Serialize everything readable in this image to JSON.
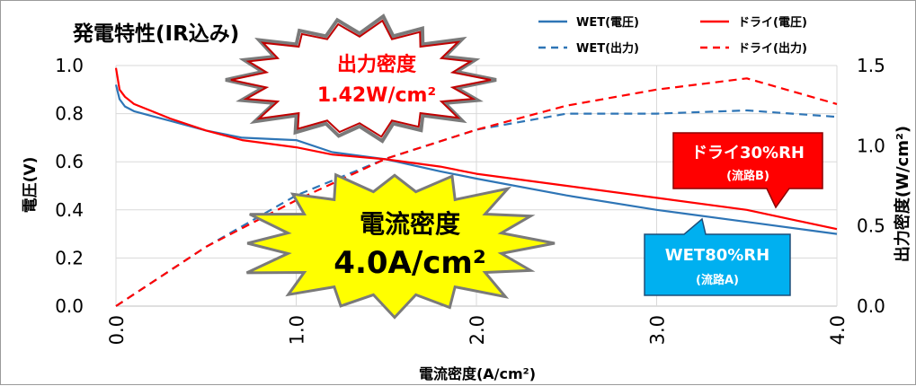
{
  "chart_data": {
    "type": "line",
    "title": "発電特性(IR込み)",
    "xlabel": "電流密度(A/cm²)",
    "ylabel": "電圧(V)",
    "y2label": "出力密度(W/cm²)",
    "xlim": [
      0,
      4
    ],
    "ylim": [
      0,
      1
    ],
    "y2lim": [
      0,
      1.5
    ],
    "xticks": [
      "0.0",
      "1.0",
      "2.0",
      "3.0",
      "4.0"
    ],
    "yticks": [
      "0.0",
      "0.2",
      "0.4",
      "0.6",
      "0.8",
      "1.0"
    ],
    "y2ticks": [
      "0.0",
      "0.5",
      "1.0",
      "1.5"
    ],
    "grid": true,
    "legend_position": "top-right",
    "series": [
      {
        "name": "WET(電圧)",
        "axis": "left",
        "style": "solid",
        "color": "#2e75b6",
        "x": [
          0,
          0.02,
          0.05,
          0.1,
          0.2,
          0.3,
          0.5,
          0.7,
          1.0,
          1.2,
          1.5,
          1.8,
          2.0,
          2.5,
          3.0,
          3.5,
          4.0
        ],
        "y": [
          0.92,
          0.86,
          0.83,
          0.81,
          0.79,
          0.77,
          0.73,
          0.7,
          0.69,
          0.64,
          0.61,
          0.56,
          0.53,
          0.46,
          0.4,
          0.35,
          0.3
        ]
      },
      {
        "name": "ドライ(電圧)",
        "axis": "left",
        "style": "solid",
        "color": "#ff0000",
        "x": [
          0,
          0.02,
          0.05,
          0.1,
          0.2,
          0.3,
          0.5,
          0.7,
          1.0,
          1.2,
          1.5,
          1.8,
          2.0,
          2.5,
          3.0,
          3.5,
          4.0
        ],
        "y": [
          0.99,
          0.9,
          0.87,
          0.84,
          0.81,
          0.78,
          0.73,
          0.69,
          0.66,
          0.63,
          0.61,
          0.58,
          0.55,
          0.5,
          0.45,
          0.4,
          0.32
        ]
      },
      {
        "name": "WET(出力)",
        "axis": "right",
        "style": "dashed",
        "color": "#2e75b6",
        "x": [
          0,
          0.5,
          1.0,
          1.5,
          2.0,
          2.5,
          3.0,
          3.5,
          4.0
        ],
        "y": [
          0,
          0.37,
          0.69,
          0.92,
          1.1,
          1.2,
          1.2,
          1.22,
          1.18
        ]
      },
      {
        "name": "ドライ(出力)",
        "axis": "right",
        "style": "dashed",
        "color": "#ff0000",
        "x": [
          0,
          0.5,
          1.0,
          1.5,
          2.0,
          2.5,
          3.0,
          3.5,
          4.0
        ],
        "y": [
          0,
          0.37,
          0.66,
          0.92,
          1.1,
          1.25,
          1.35,
          1.42,
          1.26
        ]
      }
    ],
    "annotations": {
      "output_burst": [
        "出力密度",
        "1.42W/cm²"
      ],
      "current_burst": [
        "電流密度",
        "4.0A/cm²"
      ],
      "dry_callout": [
        "ドライ30%RH",
        "(流路B)"
      ],
      "wet_callout": [
        "WET80%RH",
        "(流路A)"
      ]
    }
  }
}
